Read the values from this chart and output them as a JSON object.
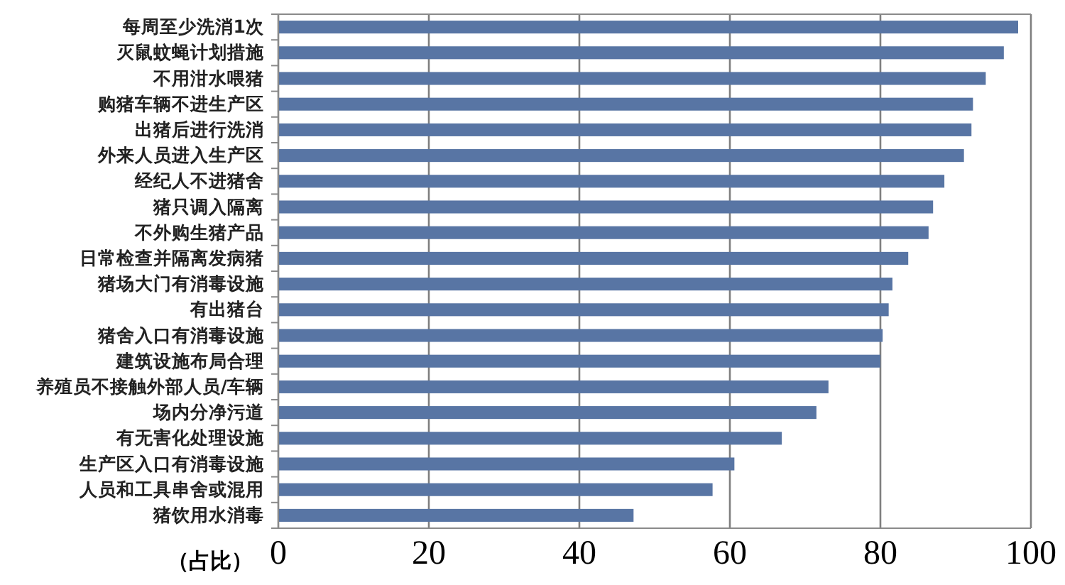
{
  "chart_data": {
    "type": "bar",
    "orientation": "horizontal",
    "xlabel": "（占比）",
    "categories": [
      "每周至少洗消1次",
      "灭鼠蚊蝇计划措施",
      "不用泔水喂猪",
      "购猪车辆不进生产区",
      "出猪后进行洗消",
      "外来人员进入生产区",
      "经纪人不进猪舍",
      "猪只调入隔离",
      "不外购生猪产品",
      "日常检查并隔离发病猪",
      "猪场大门有消毒设施",
      "有出猪台",
      "猪舍入口有消毒设施",
      "建筑设施布局合理",
      "养殖员不接触外部人员/车辆",
      "场内分净污道",
      "有无害化处理设施",
      "生产区入口有消毒设施",
      "人员和工具串舍或混用",
      "猪饮用水消毒"
    ],
    "values": [
      98.3,
      96.4,
      94.0,
      92.3,
      92.1,
      91.1,
      88.5,
      87.0,
      86.4,
      83.7,
      81.6,
      81.1,
      80.3,
      80.0,
      73.1,
      71.5,
      66.9,
      60.6,
      57.7,
      47.2
    ],
    "color": "#5875a4",
    "xlim": [
      0,
      100
    ],
    "xticks": [
      0,
      20,
      40,
      60,
      80,
      100
    ],
    "grid": "x"
  }
}
